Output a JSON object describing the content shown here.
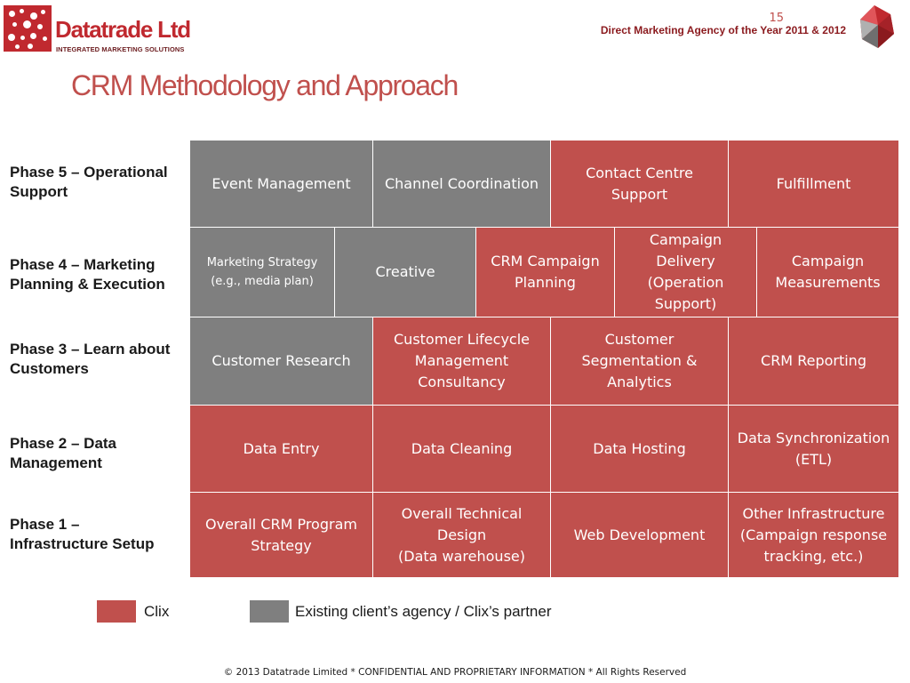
{
  "header": {
    "company_name": "Datatrade Ltd",
    "company_tagline": "INTEGRATED MARKETING SOLUTIONS",
    "page_number": "15",
    "award_text": "Direct Marketing Agency of the Year 2011 & 2012"
  },
  "title": "CRM Methodology and Approach",
  "phases": [
    {
      "label": "Phase 5 – Operational\nSupport",
      "cells": [
        {
          "text": "Event Management",
          "owner": "partner"
        },
        {
          "text": "Channel Coordination",
          "owner": "partner"
        },
        {
          "text": "Contact Centre\nSupport",
          "owner": "clix"
        },
        {
          "text": "Fulfillment",
          "owner": "clix"
        }
      ]
    },
    {
      "label": "Phase 4 – Marketing\nPlanning & Execution",
      "cells": [
        {
          "text": "Marketing Strategy\n(e.g., media plan)",
          "owner": "partner"
        },
        {
          "text": "Creative",
          "owner": "partner"
        },
        {
          "text": "CRM Campaign\nPlanning",
          "owner": "clix"
        },
        {
          "text": "Campaign\nDelivery\n(Operation\nSupport)",
          "owner": "clix"
        },
        {
          "text": "Campaign\nMeasurements",
          "owner": "clix"
        }
      ]
    },
    {
      "label": "Phase 3 – Learn about\nCustomers",
      "cells": [
        {
          "text": "Customer Research",
          "owner": "partner"
        },
        {
          "text": "Customer Lifecycle\nManagement\nConsultancy",
          "owner": "clix"
        },
        {
          "text": "Customer\nSegmentation &\nAnalytics",
          "owner": "clix"
        },
        {
          "text": "CRM Reporting",
          "owner": "clix"
        }
      ]
    },
    {
      "label": "Phase 2 – Data\nManagement",
      "cells": [
        {
          "text": "Data Entry",
          "owner": "clix"
        },
        {
          "text": "Data Cleaning",
          "owner": "clix"
        },
        {
          "text": "Data Hosting",
          "owner": "clix"
        },
        {
          "text": "Data Synchronization\n(ETL)",
          "owner": "clix"
        }
      ]
    },
    {
      "label": "Phase 1 –\nInfrastructure Setup",
      "cells": [
        {
          "text": "Overall CRM Program\nStrategy",
          "owner": "clix"
        },
        {
          "text": "Overall Technical Design\n(Data warehouse)",
          "owner": "clix"
        },
        {
          "text": "Web Development",
          "owner": "clix"
        },
        {
          "text": "Other Infrastructure\n(Campaign response\ntracking, etc.)",
          "owner": "clix"
        }
      ]
    }
  ],
  "legend": [
    {
      "label": "Clix",
      "color": "#c0504d"
    },
    {
      "label": "Existing client’s agency / Clix’s partner",
      "color": "#7f7f7f"
    }
  ],
  "footer": "© 2013 Datatrade Limited *  CONFIDENTIAL AND PROPRIETARY INFORMATION  * All Rights Reserved",
  "colors": {
    "clix": "#c0504d",
    "partner": "#7f7f7f",
    "brand": "#c0292f"
  }
}
